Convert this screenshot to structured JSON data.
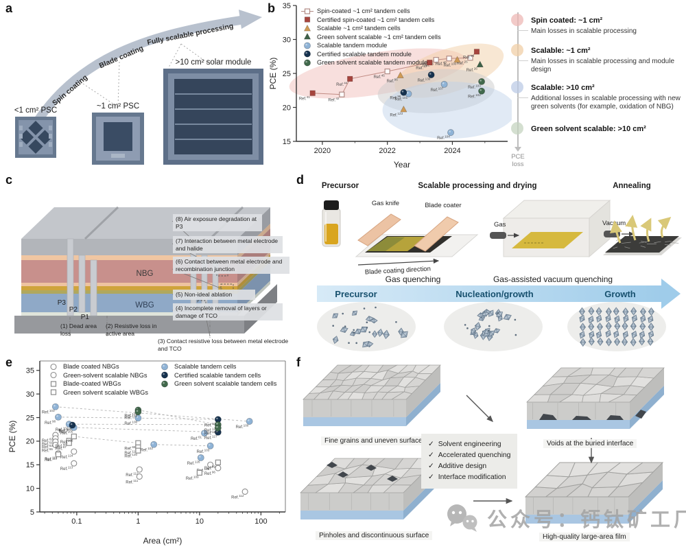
{
  "panels": {
    "a": {
      "label": "a",
      "arrow_stages": [
        "Spin coating",
        "Blade coating",
        "Fully scalable processing"
      ],
      "devices": [
        {
          "caption": "<1 cm² PSC"
        },
        {
          "caption": "~1 cm² PSC"
        },
        {
          "caption": ">10 cm² solar module"
        }
      ]
    },
    "b": {
      "label": "b",
      "right_column": {
        "sections": [
          {
            "dot_color": "#edb8b5",
            "title": "Spin coated: ~1 cm²",
            "desc": "Main losses in scalable processing"
          },
          {
            "dot_color": "#f0cfa7",
            "title": "Scalable: ~1 cm²",
            "desc": "Main losses in scalable processing and module design"
          },
          {
            "dot_color": "#bccbe6",
            "title": "Scalable: >10 cm²",
            "desc": "Additional losses in scalable processing with new green solvents (for example, oxidation of NBG)"
          },
          {
            "dot_color": "#c5d4c0",
            "title": "Green solvent scalable: >10 cm²",
            "desc": ""
          }
        ],
        "axis_label": "PCE loss"
      }
    },
    "c": {
      "label": "c",
      "layer_labels": {
        "nbg": "NBG",
        "wbg": "WBG",
        "p1": "P1",
        "p2": "P2",
        "p3": "P3"
      },
      "callouts_right": [
        "(8) Air exposure degradation at P3",
        "(7) Interaction between metal electrode and halide",
        "(6) Contact between metal electrode and recombination junction",
        "(5) Non-ideal ablation",
        "(4) Incomplete removal of layers or damage of TCO"
      ],
      "callouts_bottom": [
        "(1) Dead area loss",
        "(2) Resistive loss in active area",
        "(3) Contact resistive loss between metal electrode and TCO"
      ]
    },
    "d": {
      "label": "d",
      "headers": [
        "Precursor",
        "Scalable processing and drying",
        "Annealing"
      ],
      "equipment_labels": {
        "gas_knife": "Gas knife",
        "blade_coater": "Blade coater",
        "coating_direction": "Blade coating direction",
        "gas": "Gas",
        "vacuum": "Vacuum"
      },
      "captions": {
        "blade": "Gas quenching",
        "vacuum": "Gas-assisted vacuum quenching"
      },
      "stage_arrow": [
        "Precursor",
        "Nucleation/growth",
        "Growth"
      ]
    },
    "e": {
      "label": "e"
    },
    "f": {
      "label": "f",
      "block_labels": [
        "Fine grains and uneven surface",
        "Voids at the buried interface",
        "Pinholes and discontinuous surface",
        "High-quality large-area film"
      ],
      "checklist": [
        "Solvent engineering",
        "Accelerated quenching",
        "Additive design",
        "Interface modification"
      ]
    }
  },
  "watermark": {
    "text": "公众号：钙钛矿工厂"
  },
  "chart_data": [
    {
      "id": "b",
      "type": "scatter",
      "xlabel": "Year",
      "ylabel": "PCE (%)",
      "xscale": "linear",
      "xlim": [
        2019.2,
        2025.7
      ],
      "ylim": [
        15,
        35
      ],
      "xticks": [
        2020,
        2022,
        2024
      ],
      "yticks": [
        15,
        20,
        25,
        30,
        35
      ],
      "legend_position": "top-left",
      "grid": false,
      "regions": [
        {
          "name": "spin-coated",
          "color": "#f0b9b4",
          "opacity": 0.45,
          "cx": 2021.7,
          "cy": 25.0,
          "rx": 2.75,
          "ry": 3.1,
          "rot": -9
        },
        {
          "name": "scalable-small-area",
          "color": "#f2d0a8",
          "opacity": 0.5,
          "cx": 2023.9,
          "cy": 25.4,
          "rx": 1.75,
          "ry": 3.2,
          "rot": -18
        },
        {
          "name": "scalable-module",
          "color": "#cccccc",
          "opacity": 0.5,
          "cx": 2023.5,
          "cy": 22.4,
          "rx": 1.8,
          "ry": 3.2,
          "rot": -4
        },
        {
          "name": "green-solvent-scalable",
          "color": "#bcd0e8",
          "opacity": 0.45,
          "cx": 2023.9,
          "cy": 19.6,
          "rx": 2.05,
          "ry": 4.2,
          "rot": 0
        }
      ],
      "trend_line": {
        "color": "#c08a82",
        "points": [
          [
            2019.7,
            22.1
          ],
          [
            2020.6,
            21.9
          ],
          [
            2020.85,
            24.2
          ],
          [
            2022.0,
            25.3
          ],
          [
            2023.3,
            26.6
          ],
          [
            2023.5,
            27.0
          ],
          [
            2023.9,
            27.2
          ],
          [
            2024.55,
            27.3
          ],
          [
            2024.75,
            28.2
          ]
        ]
      },
      "series": [
        {
          "name": "Spin-coated ~1 cm² tandem cells",
          "marker": "square-open",
          "color": "#b08a84",
          "points": [
            [
              2020.6,
              21.9,
              "42"
            ],
            [
              2022.0,
              25.3,
              "45"
            ],
            [
              2023.5,
              27.0,
              "35"
            ],
            [
              2023.9,
              27.2,
              "48"
            ],
            [
              2024.55,
              27.3,
              "25"
            ]
          ]
        },
        {
          "name": "Certified spin-coated ~1 cm² tandem cells",
          "marker": "square-fill",
          "color": "#a6453e",
          "points": [
            [
              2019.7,
              22.1,
              "41"
            ],
            [
              2020.85,
              24.2,
              "44"
            ],
            [
              2023.3,
              26.6,
              "47"
            ],
            [
              2024.75,
              28.2,
              "99"
            ]
          ]
        },
        {
          "name": "Scalable ~1 cm² tandem cells",
          "marker": "triangle",
          "color": "#cf9a55",
          "points": [
            [
              2022.4,
              24.7,
              "96"
            ],
            [
              2024.15,
              27.0,
              "100"
            ],
            [
              2022.5,
              19.7,
              "123"
            ]
          ]
        },
        {
          "name": "Green solvent scalable ~1 cm² tandem cells",
          "marker": "triangle",
          "color": "#3e6148",
          "points": [
            [
              2024.85,
              26.3,
              "26"
            ]
          ]
        },
        {
          "name": "Scalable tandem module",
          "marker": "circle",
          "color": "#8fb3d6",
          "points": [
            [
              2022.65,
              22.0,
              "101"
            ],
            [
              2023.75,
              23.4,
              "107"
            ],
            [
              2023.95,
              16.3,
              "104"
            ]
          ]
        },
        {
          "name": "Certified scalable tandem module",
          "marker": "circle",
          "color": "#16324f",
          "points": [
            [
              2022.5,
              22.2,
              "98"
            ],
            [
              2023.35,
              24.8,
              "130"
            ]
          ]
        },
        {
          "name": "Green solvent scalable tandem module",
          "marker": "circle",
          "color": "#41694c",
          "points": [
            [
              2024.9,
              23.8,
              "103"
            ],
            [
              2024.9,
              22.4,
              "102"
            ]
          ]
        }
      ]
    },
    {
      "id": "e",
      "type": "scatter",
      "xlabel": "Area (cm²)",
      "ylabel": "PCE (%)",
      "xscale": "log",
      "xlim": [
        0.025,
        250
      ],
      "ylim": [
        5,
        37
      ],
      "xticks": [
        0.1,
        1,
        10,
        100
      ],
      "yticks": [
        5,
        10,
        15,
        20,
        25,
        30,
        35
      ],
      "legend_position": "top-left",
      "grid": false,
      "links": [
        [
          0.045,
          27.3,
          65,
          24.2
        ],
        [
          0.05,
          25.1,
          1.0,
          24.9
        ],
        [
          1.0,
          24.9,
          20,
          24.6
        ],
        [
          0.075,
          23.6,
          20,
          23.5
        ],
        [
          0.09,
          22.9,
          20,
          21.9
        ],
        [
          1.0,
          26.6,
          20,
          23.5
        ],
        [
          1.8,
          19.3,
          15,
          19.0
        ],
        [
          0.09,
          21.0,
          1.0,
          19.6
        ]
      ],
      "series": [
        {
          "name": "Blade coated NBGs",
          "marker": "circle-open",
          "color": "#8a8a8a",
          "points": [
            [
              0.045,
              21.3,
              "62"
            ],
            [
              0.045,
              20.6,
              "61"
            ],
            [
              0.045,
              19.9,
              "63"
            ],
            [
              0.045,
              19.2,
              "65"
            ],
            [
              0.09,
              17.8,
              "124"
            ],
            [
              1.05,
              14.0,
              "112"
            ],
            [
              1.05,
              12.5,
              "111"
            ],
            [
              20,
              14.3,
              "96"
            ],
            [
              55,
              9.3,
              "112"
            ]
          ]
        },
        {
          "name": "Green-solvent scalable NBGs",
          "marker": "circle-open",
          "color": "#8a8a8a",
          "points": [
            [
              0.05,
              17.4,
              "118"
            ],
            [
              0.09,
              15.3,
              "113"
            ],
            [
              15,
              15.0,
              "128"
            ]
          ]
        },
        {
          "name": "Blade-coated WBGs",
          "marker": "square-open",
          "color": "#8a8a8a",
          "points": [
            [
              0.075,
              20.1,
              "66"
            ],
            [
              0.075,
              19.6,
              "67"
            ],
            [
              0.09,
              21.0,
              "108"
            ],
            [
              1.0,
              19.6,
              "68"
            ],
            [
              1.0,
              18.7,
              "110"
            ],
            [
              20,
              15.5,
              "99"
            ]
          ]
        },
        {
          "name": "Green solvent scalable WBGs",
          "marker": "square-open",
          "color": "#8a8a8a",
          "points": [
            [
              0.05,
              17.2,
              "119"
            ],
            [
              1.0,
              18.0,
              "120"
            ],
            [
              10,
              13.3,
              "109"
            ]
          ]
        },
        {
          "name": "Scalable tandem cells",
          "marker": "circle",
          "color": "#8fb3d6",
          "points": [
            [
              0.045,
              27.3,
              "103"
            ],
            [
              0.05,
              25.1,
              "98"
            ],
            [
              0.075,
              23.6,
              "101"
            ],
            [
              0.085,
              23.2,
              "97"
            ],
            [
              0.09,
              22.9,
              "105"
            ],
            [
              1.0,
              24.9,
              "106"
            ],
            [
              1.8,
              19.3,
              "102"
            ],
            [
              12,
              21.7,
              "61"
            ],
            [
              10.5,
              16.5,
              "126"
            ],
            [
              15,
              19.0,
              "103"
            ],
            [
              65,
              24.2,
              "100"
            ]
          ]
        },
        {
          "name": "Certified scalable tandem cells",
          "marker": "circle",
          "color": "#16324f",
          "points": [
            [
              0.085,
              23.4,
              "130"
            ],
            [
              20,
              24.6,
              "100"
            ],
            [
              20,
              21.9,
              "127"
            ]
          ]
        },
        {
          "name": "Green solvent scalable tandem cells",
          "marker": "circle",
          "color": "#41694c",
          "points": [
            [
              1.0,
              26.6,
              "122"
            ],
            [
              1.0,
              26.2,
              "121"
            ],
            [
              20,
              23.5,
              "125"
            ],
            [
              20,
              22.8,
              "129"
            ]
          ]
        }
      ]
    }
  ]
}
